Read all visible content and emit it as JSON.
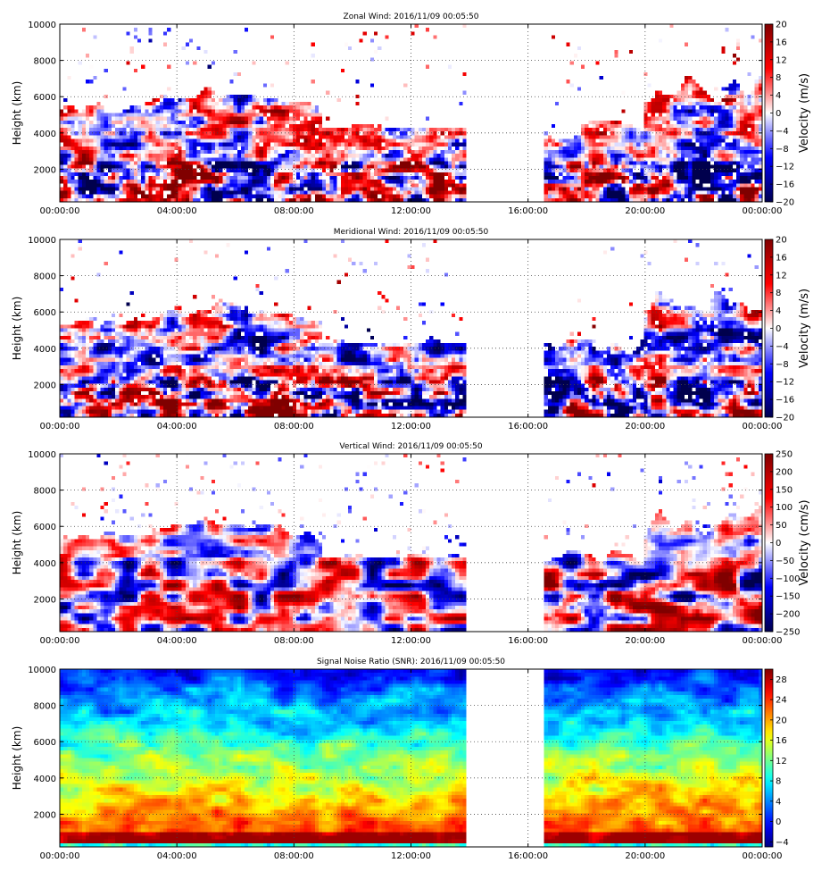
{
  "chart_data": [
    {
      "type": "heatmap",
      "title": "Zonal Wind: 2016/11/09 00:05:50",
      "ylabel": "Height (km)",
      "xlabel": "",
      "x_ticks": [
        "00:00:00",
        "04:00:00",
        "08:00:00",
        "12:00:00",
        "16:00:00",
        "20:00:00",
        "00:00:00"
      ],
      "y_ticks": [
        2000,
        4000,
        6000,
        8000,
        10000
      ],
      "ylim": [
        200,
        10000
      ],
      "colorbar": {
        "label": "Velocity (m/s)",
        "colormap": "seismic",
        "ticks": [
          "20",
          "16",
          "12",
          "8",
          "4",
          "0",
          "−4",
          "−8",
          "−12",
          "−16",
          "−20"
        ],
        "range": [
          -20,
          20
        ]
      },
      "grid": true,
      "data_gap_hours": [
        13.9,
        16.5
      ]
    },
    {
      "type": "heatmap",
      "title": "Meridional Wind: 2016/11/09 00:05:50",
      "ylabel": "Height (km)",
      "xlabel": "",
      "x_ticks": [
        "00:00:00",
        "04:00:00",
        "08:00:00",
        "12:00:00",
        "16:00:00",
        "20:00:00",
        "00:00:00"
      ],
      "y_ticks": [
        2000,
        4000,
        6000,
        8000,
        10000
      ],
      "ylim": [
        200,
        10000
      ],
      "colorbar": {
        "label": "Velocity (m/s)",
        "colormap": "seismic",
        "ticks": [
          "20",
          "16",
          "12",
          "8",
          "4",
          "0",
          "−4",
          "−8",
          "−12",
          "−16",
          "−20"
        ],
        "range": [
          -20,
          20
        ]
      },
      "grid": true,
      "data_gap_hours": [
        13.9,
        16.5
      ]
    },
    {
      "type": "heatmap",
      "title": "Vertical Wind: 2016/11/09 00:05:50",
      "ylabel": "Height (km)",
      "xlabel": "",
      "x_ticks": [
        "00:00:00",
        "04:00:00",
        "08:00:00",
        "12:00:00",
        "16:00:00",
        "20:00:00",
        "00:00:00"
      ],
      "y_ticks": [
        2000,
        4000,
        6000,
        8000,
        10000
      ],
      "ylim": [
        200,
        10000
      ],
      "colorbar": {
        "label": "Velocity (cm/s)",
        "colormap": "seismic",
        "ticks": [
          "250",
          "200",
          "150",
          "100",
          "50",
          "0",
          "−50",
          "−100",
          "−150",
          "−200",
          "−250"
        ],
        "range": [
          -250,
          250
        ]
      },
      "grid": true,
      "data_gap_hours": [
        13.9,
        16.5
      ]
    },
    {
      "type": "heatmap",
      "title": "Signal Noise Ratio (SNR): 2016/11/09 00:05:50",
      "ylabel": "Height (km)",
      "xlabel": "",
      "x_ticks": [
        "00:00:00",
        "04:00:00",
        "08:00:00",
        "12:00:00",
        "16:00:00",
        "20:00:00",
        "00:00:00"
      ],
      "y_ticks": [
        2000,
        4000,
        6000,
        8000,
        10000
      ],
      "ylim": [
        200,
        10000
      ],
      "colorbar": {
        "label": "",
        "colormap": "jet",
        "ticks": [
          "28",
          "24",
          "20",
          "16",
          "12",
          "8",
          "4",
          "0",
          "−4"
        ],
        "range": [
          -5,
          30
        ]
      },
      "grid": true,
      "data_gap_hours": [
        13.9,
        16.5
      ]
    }
  ]
}
